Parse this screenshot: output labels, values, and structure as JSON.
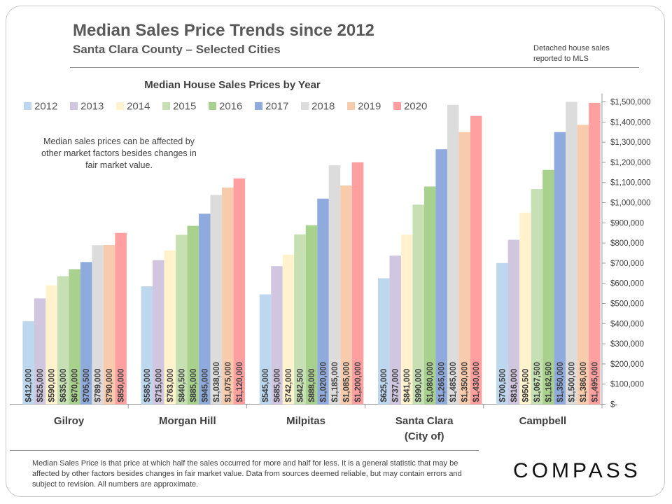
{
  "header": {
    "title": "Median Sales Price Trends since 2012",
    "subtitle": "Santa Clara County – Selected Cities",
    "note": "Detached house sales reported to MLS"
  },
  "footnote": "Median Sales Price is that price at which half the sales occurred for more and half for less. It is a general statistic that may be affected by other factors besides changes in fair market value. Data from sources deemed reliable, but may contain errors and subject to revision.  All numbers are approximate.",
  "brand": {
    "logo": "COMPASS"
  },
  "chart_data": {
    "type": "bar",
    "title": "Median House Sales Prices by Year",
    "annotation": "Median sales prices can be affected by other market factors besides changes in fair market value.",
    "categories": [
      "Gilroy",
      "Morgan Hill",
      "Milpitas",
      "Santa Clara (City of)",
      "Campbell"
    ],
    "category_lines": [
      [
        "Gilroy"
      ],
      [
        "Morgan Hill"
      ],
      [
        "Milpitas"
      ],
      [
        "Santa Clara",
        "(City of)"
      ],
      [
        "Campbell"
      ]
    ],
    "ylim": [
      0,
      1500000
    ],
    "y_ticks": [
      {
        "value": 0,
        "label": "$-"
      },
      {
        "value": 100000,
        "label": "$100,000"
      },
      {
        "value": 200000,
        "label": "$200,000"
      },
      {
        "value": 300000,
        "label": "$300,000"
      },
      {
        "value": 400000,
        "label": "$400,000"
      },
      {
        "value": 500000,
        "label": "$500,000"
      },
      {
        "value": 600000,
        "label": "$600,000"
      },
      {
        "value": 700000,
        "label": "$700,000"
      },
      {
        "value": 800000,
        "label": "$800,000"
      },
      {
        "value": 900000,
        "label": "$900,000"
      },
      {
        "value": 1000000,
        "label": "$1,000,000"
      },
      {
        "value": 1100000,
        "label": "$1,100,000"
      },
      {
        "value": 1200000,
        "label": "$1,200,000"
      },
      {
        "value": 1300000,
        "label": "$1,300,000"
      },
      {
        "value": 1400000,
        "label": "$1,400,000"
      },
      {
        "value": 1500000,
        "label": "$1,500,000"
      }
    ],
    "y_axis_position": "right",
    "legend_position": "top-left",
    "grid": false,
    "series": [
      {
        "name": "2012",
        "color": "#bdd7ee",
        "values": [
          412000,
          585000,
          545000,
          625000,
          700500
        ],
        "labels": [
          "$412,000",
          "$585,000",
          "$545,000",
          "$625,000",
          "$700,500"
        ]
      },
      {
        "name": "2013",
        "color": "#d0c6e0",
        "values": [
          525000,
          715000,
          685000,
          737000,
          816000
        ],
        "labels": [
          "$525,000",
          "$715,000",
          "$685,000",
          "$737,000",
          "$816,000"
        ]
      },
      {
        "name": "2014",
        "color": "#fff2cc",
        "values": [
          590000,
          763000,
          742000,
          841000,
          950500
        ],
        "labels": [
          "$590,000",
          "$763,000",
          "$742,000",
          "$841,000",
          "$950,500"
        ]
      },
      {
        "name": "2015",
        "color": "#c6e0b4",
        "values": [
          635000,
          840500,
          842500,
          990000,
          1067500
        ],
        "labels": [
          "$635,000",
          "$840,500",
          "$842,500",
          "$990,000",
          "$1,067,500"
        ]
      },
      {
        "name": "2016",
        "color": "#a9d18e",
        "values": [
          670000,
          885000,
          888000,
          1080000,
          1162500
        ],
        "labels": [
          "$670,000",
          "$885,000",
          "$888,000",
          "$1,080,000",
          "$1,162,500"
        ]
      },
      {
        "name": "2017",
        "color": "#8faadc",
        "values": [
          705500,
          945000,
          1020000,
          1265000,
          1350000
        ],
        "labels": [
          "$705,500",
          "$945,000",
          "$1,020,000",
          "$1,265,000",
          "$1,350,000"
        ]
      },
      {
        "name": "2018",
        "color": "#dcdcdc",
        "values": [
          789000,
          1038000,
          1185000,
          1485000,
          1500000
        ],
        "labels": [
          "$789,000",
          "$1,038,000",
          "$1,185,000",
          "$1,485,000",
          "$1,500,000"
        ]
      },
      {
        "name": "2019",
        "color": "#f8cbad",
        "values": [
          790000,
          1075000,
          1085000,
          1350000,
          1386000
        ],
        "labels": [
          "$790,000",
          "$1,075,000",
          "$1,085,000",
          "$1,350,000",
          "$1,386,000"
        ]
      },
      {
        "name": "2020",
        "color": "#ff9f9f",
        "values": [
          850000,
          1120000,
          1200000,
          1430000,
          1495000
        ],
        "labels": [
          "$850,000",
          "$1,120,000",
          "$1,200,000",
          "$1,430,000",
          "$1,495,000"
        ]
      }
    ]
  }
}
